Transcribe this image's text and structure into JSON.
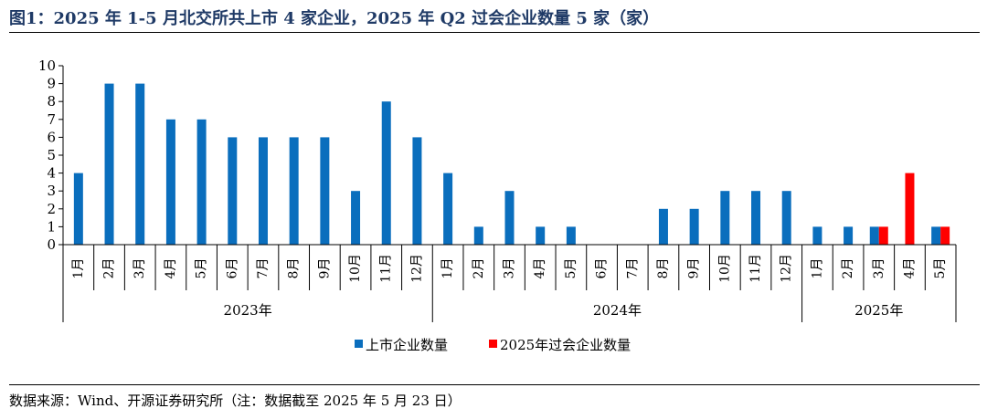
{
  "header": {
    "title": "图1：2025 年 1-5 月北交所共上市 4 家企业，2025 年 Q2 过会企业数量 5 家（家）"
  },
  "footer": {
    "source": "数据来源：Wind、开源证券研究所（注：数据截至 2025 年 5 月 23 日）"
  },
  "chart_data": {
    "type": "bar",
    "title": "",
    "xlabel": "",
    "ylabel": "",
    "ylim": [
      0,
      10
    ],
    "yticks": [
      0,
      1,
      2,
      3,
      4,
      5,
      6,
      7,
      8,
      9,
      10
    ],
    "grid": false,
    "legend_position": "bottom",
    "colors": {
      "listed": "#0a6ebd",
      "approved": "#ff0000"
    },
    "years": [
      {
        "label": "2023年",
        "months": [
          "1月",
          "2月",
          "3月",
          "4月",
          "5月",
          "6月",
          "7月",
          "8月",
          "9月",
          "10月",
          "11月",
          "12月"
        ]
      },
      {
        "label": "2024年",
        "months": [
          "1月",
          "2月",
          "3月",
          "4月",
          "5月",
          "6月",
          "7月",
          "8月",
          "9月",
          "10月",
          "11月",
          "12月"
        ]
      },
      {
        "label": "2025年",
        "months": [
          "1月",
          "2月",
          "3月",
          "4月",
          "5月"
        ]
      }
    ],
    "series": [
      {
        "name": "上市企业数量",
        "color": "#0a6ebd",
        "values": [
          4,
          9,
          9,
          7,
          7,
          6,
          6,
          6,
          6,
          3,
          8,
          6,
          4,
          1,
          3,
          1,
          1,
          0,
          0,
          2,
          2,
          3,
          3,
          3,
          1,
          1,
          1,
          0,
          1
        ]
      },
      {
        "name": "2025年过会企业数量",
        "color": "#ff0000",
        "values": [
          null,
          null,
          null,
          null,
          null,
          null,
          null,
          null,
          null,
          null,
          null,
          null,
          null,
          null,
          null,
          null,
          null,
          null,
          null,
          null,
          null,
          null,
          null,
          null,
          null,
          null,
          1,
          4,
          1
        ]
      }
    ]
  }
}
